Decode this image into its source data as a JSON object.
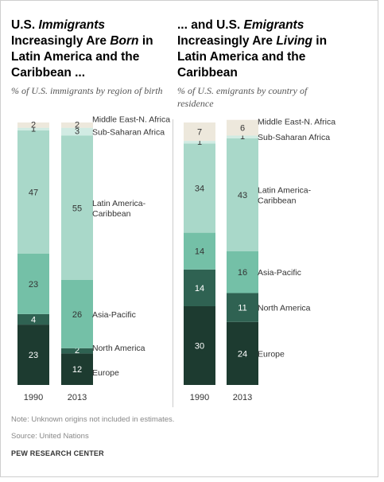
{
  "left_panel": {
    "title": {
      "p1": "U.S. ",
      "p2": "Immigrants",
      "p3": " Increasingly Are ",
      "p4": "Born",
      "p5": " in Latin America and the Caribbean ..."
    },
    "subtitle": "% of U.S. immigrants by region of birth"
  },
  "right_panel": {
    "title": {
      "p1": "... and U.S. ",
      "p2": "Emigrants",
      "p3": " Increasingly Are ",
      "p4": "Living",
      "p5": " in Latin America and the Caribbean"
    },
    "subtitle": "% of U.S. emigrants by country of residence"
  },
  "colors": {
    "Middle East-N. Africa": "#ede8dc",
    "Sub-Saharan Africa": "#d1ebe3",
    "Latin America-Caribbean": "#a9d8c9",
    "Asia-Pacific": "#74c0a7",
    "North America": "#2f6252",
    "Europe": "#1d3b30"
  },
  "chart_data": [
    {
      "type": "bar",
      "stacked": true,
      "title": "U.S. Immigrants Increasingly Are Born in Latin America and the Caribbean ...",
      "subtitle": "% of U.S. immigrants by region of birth",
      "categories": [
        "1990",
        "2013"
      ],
      "series": [
        {
          "name": "Europe",
          "values": [
            23,
            12
          ]
        },
        {
          "name": "North America",
          "values": [
            4,
            2
          ]
        },
        {
          "name": "Asia-Pacific",
          "values": [
            23,
            26
          ]
        },
        {
          "name": "Latin America-Caribbean",
          "values": [
            47,
            55
          ]
        },
        {
          "name": "Sub-Saharan Africa",
          "values": [
            1,
            3
          ]
        },
        {
          "name": "Middle East-N. Africa",
          "values": [
            2,
            2
          ]
        }
      ],
      "series_labels": {
        "Middle East-N. Africa": "Middle East-N. Africa",
        "Sub-Saharan Africa": "Sub-Saharan Africa",
        "Latin America-Caribbean": [
          "Latin America-",
          "Caribbean"
        ],
        "Asia-Pacific": "Asia-Pacific",
        "North America": "North America",
        "Europe": "Europe"
      }
    },
    {
      "type": "bar",
      "stacked": true,
      "title": "... and U.S. Emigrants Increasingly Are Living in Latin America and the Caribbean",
      "subtitle": "% of U.S. emigrants by country of residence",
      "categories": [
        "1990",
        "2013"
      ],
      "series": [
        {
          "name": "Europe",
          "values": [
            30,
            24
          ]
        },
        {
          "name": "North America",
          "values": [
            14,
            11
          ]
        },
        {
          "name": "Asia-Pacific",
          "values": [
            14,
            16
          ]
        },
        {
          "name": "Latin America-Caribbean",
          "values": [
            34,
            43
          ]
        },
        {
          "name": "Sub-Saharan Africa",
          "values": [
            1,
            1
          ]
        },
        {
          "name": "Middle East-N. Africa",
          "values": [
            7,
            6
          ]
        }
      ],
      "series_labels": {
        "Middle East-N. Africa": "Middle East-N. Africa",
        "Sub-Saharan Africa": "Sub-Saharan Africa",
        "Latin America-Caribbean": [
          "Latin America-",
          "Caribbean"
        ],
        "Asia-Pacific": "Asia-Pacific",
        "North America": "North America",
        "Europe": "Europe"
      }
    }
  ],
  "footer": {
    "note": "Note: Unknown origins not included in estimates.",
    "source": "Source: United Nations",
    "brand": "PEW RESEARCH CENTER"
  }
}
